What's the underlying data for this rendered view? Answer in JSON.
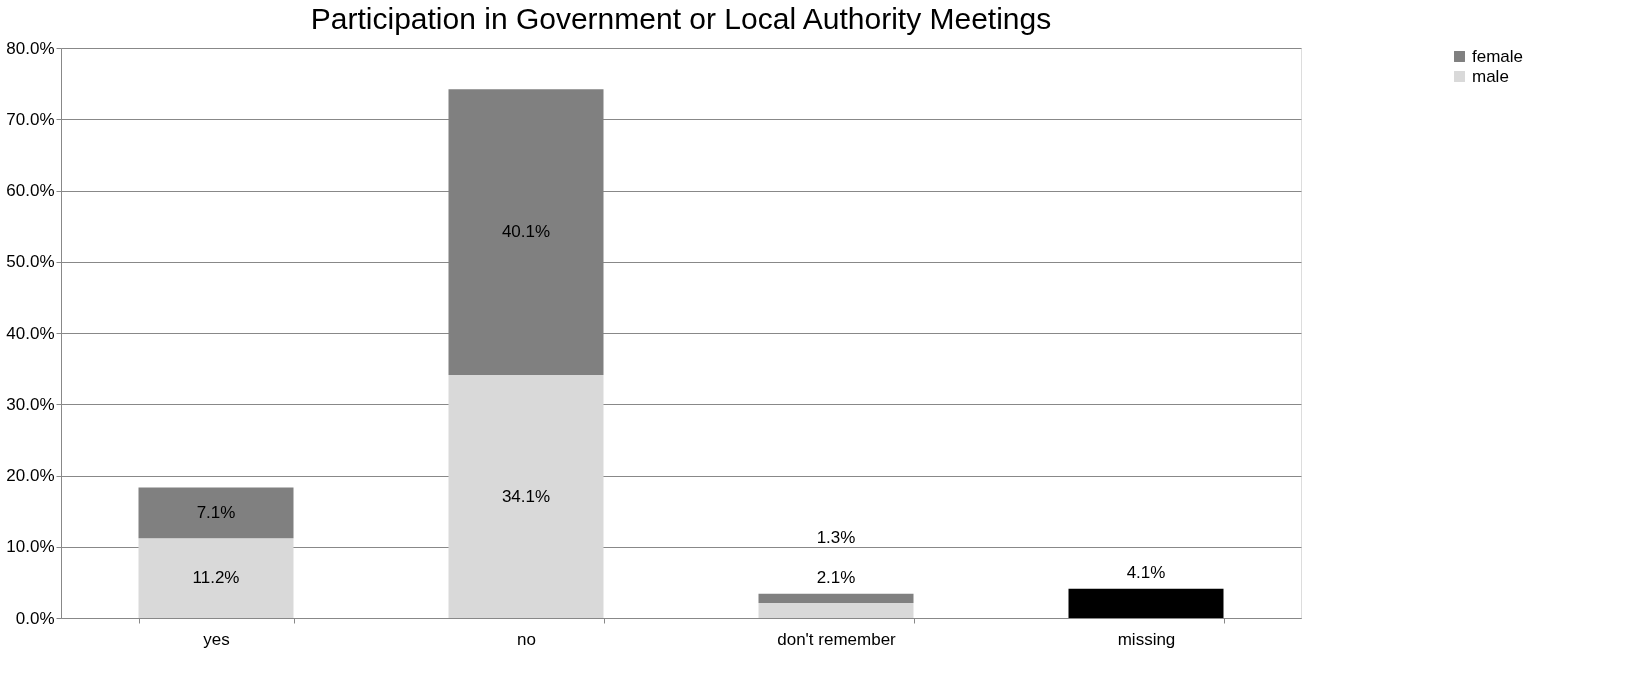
{
  "chart_data": {
    "type": "bar",
    "title": "Participation in Government or Local Authority Meetings",
    "categories": [
      "yes",
      "no",
      "don't remember",
      "missing"
    ],
    "stacked": true,
    "series": [
      {
        "name": "male",
        "color": "#d9d9d9",
        "values": [
          11.2,
          34.1,
          2.1,
          null
        ],
        "value_labels": [
          "11.2%",
          "34.1%",
          "2.1%",
          null
        ]
      },
      {
        "name": "female",
        "color": "#808080",
        "values": [
          7.1,
          40.1,
          1.3,
          null
        ],
        "value_labels": [
          "7.1%",
          "40.1%",
          "1.3%",
          null
        ]
      },
      {
        "color": "#000000",
        "values": [
          null,
          null,
          null,
          4.1
        ],
        "value_labels": [
          null,
          null,
          null,
          "4.1%"
        ]
      }
    ],
    "ylim": [
      0,
      80
    ],
    "yticks": [
      {
        "value": 0,
        "label": "0.0%"
      },
      {
        "value": 10,
        "label": "10.0%"
      },
      {
        "value": 20,
        "label": "20.0%"
      },
      {
        "value": 30,
        "label": "30.0%"
      },
      {
        "value": 40,
        "label": "40.0%"
      },
      {
        "value": 50,
        "label": "50.0%"
      },
      {
        "value": 60,
        "label": "60.0%"
      },
      {
        "value": 70,
        "label": "70.0%"
      },
      {
        "value": 80,
        "label": "80.0%"
      }
    ],
    "grid": "y",
    "legend": "right"
  }
}
